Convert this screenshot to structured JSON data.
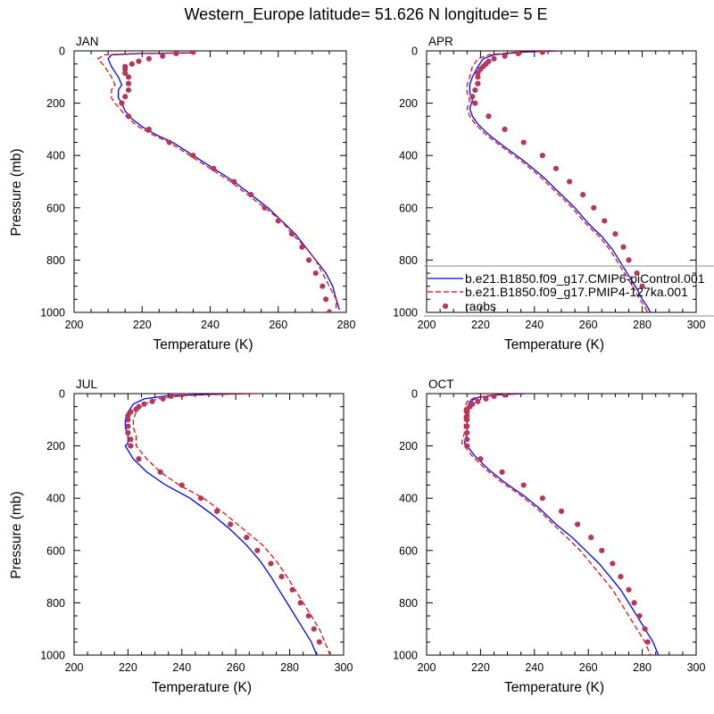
{
  "title": "Western_Europe  latitude= 51.626 N longitude= 5 E",
  "colors": {
    "model_a": "#0000ff",
    "model_b": "#e00000",
    "obs": "#b5385a"
  },
  "legend": {
    "entries": [
      {
        "label": "b.e21.B1850.f09_g17.CMIP6-piControl.001",
        "style": "solid",
        "color": "#0000ff"
      },
      {
        "label": "b.e21.B1850.f09_g17.PMIP4-127ka.001",
        "style": "dashed",
        "color": "#e00000"
      },
      {
        "label": "raobs",
        "style": "marker",
        "color": "#b5385a"
      }
    ]
  },
  "chart_data": [
    {
      "type": "line",
      "panel_label": "JAN",
      "xlabel": "Temperature (K)",
      "ylabel": "Pressure (mb)",
      "xlim": [
        200,
        280
      ],
      "ylim": [
        1000,
        0
      ],
      "xticks": [
        200,
        220,
        240,
        260,
        280
      ],
      "yticks": [
        0,
        200,
        400,
        600,
        800,
        1000
      ],
      "series": [
        {
          "name": "b.e21.B1850.f09_g17.CMIP6-piControl.001",
          "x": [
            235,
            220,
            211,
            210,
            211,
            213,
            214,
            213,
            213,
            214,
            215,
            217,
            220,
            224,
            229,
            235,
            241,
            247,
            252,
            257,
            261,
            265,
            268,
            271,
            274,
            276,
            277,
            278
          ],
          "y": [
            8,
            10,
            15,
            30,
            60,
            100,
            130,
            150,
            180,
            200,
            230,
            260,
            290,
            320,
            350,
            400,
            450,
            500,
            550,
            600,
            650,
            700,
            750,
            800,
            850,
            900,
            950,
            990
          ]
        },
        {
          "name": "b.e21.B1850.f09_g17.PMIP4-127ka.001",
          "x": [
            234,
            218,
            209,
            207,
            209,
            211,
            212,
            211,
            211,
            212,
            214,
            216,
            219,
            223,
            228,
            234,
            240,
            246,
            251,
            256,
            261,
            264,
            268,
            271,
            273,
            275,
            277,
            277
          ],
          "y": [
            8,
            10,
            15,
            30,
            60,
            100,
            130,
            150,
            180,
            200,
            230,
            260,
            290,
            320,
            350,
            400,
            450,
            500,
            550,
            600,
            650,
            700,
            750,
            800,
            850,
            900,
            950,
            990
          ]
        },
        {
          "name": "raobs",
          "x": [
            235,
            230,
            226,
            222,
            219,
            217,
            215,
            215,
            215,
            216,
            216,
            216,
            215,
            214,
            216,
            222,
            228,
            235,
            241,
            247,
            252,
            256,
            260,
            264,
            267,
            269,
            271,
            273,
            274,
            275
          ],
          "y": [
            5,
            10,
            20,
            30,
            40,
            50,
            60,
            70,
            85,
            100,
            125,
            150,
            175,
            200,
            250,
            300,
            350,
            400,
            450,
            500,
            550,
            600,
            650,
            700,
            750,
            800,
            850,
            900,
            950,
            1000
          ]
        }
      ]
    },
    {
      "type": "line",
      "panel_label": "APR",
      "xlabel": "Temperature (K)",
      "ylabel": "",
      "xlim": [
        200,
        300
      ],
      "ylim": [
        1000,
        0
      ],
      "xticks": [
        200,
        220,
        240,
        260,
        280,
        300
      ],
      "yticks": [
        0,
        200,
        400,
        600,
        800,
        1000
      ],
      "series": [
        {
          "name": "b.e21.B1850.f09_g17.CMIP6-piControl.001",
          "x": [
            249,
            235,
            225,
            221,
            219,
            217,
            216,
            216,
            217,
            216,
            217,
            219,
            223,
            228,
            236,
            243,
            249,
            255,
            260,
            265,
            269,
            272,
            275,
            278,
            280,
            282,
            283
          ],
          "y": [
            0,
            5,
            15,
            30,
            60,
            100,
            130,
            160,
            190,
            220,
            250,
            280,
            320,
            360,
            420,
            480,
            540,
            600,
            660,
            710,
            760,
            810,
            860,
            910,
            950,
            980,
            1000
          ]
        },
        {
          "name": "b.e21.B1850.f09_g17.PMIP4-127ka.001",
          "x": [
            248,
            233,
            223,
            219,
            217,
            216,
            215,
            215,
            216,
            215,
            216,
            218,
            222,
            227,
            235,
            242,
            248,
            254,
            259,
            264,
            268,
            271,
            274,
            277,
            279,
            281,
            282
          ],
          "y": [
            0,
            5,
            15,
            30,
            60,
            100,
            130,
            160,
            190,
            220,
            250,
            280,
            320,
            360,
            420,
            480,
            540,
            600,
            660,
            710,
            760,
            810,
            860,
            910,
            950,
            980,
            1000
          ]
        },
        {
          "name": "raobs",
          "x": [
            243,
            234,
            229,
            225,
            223,
            222,
            221,
            220,
            219,
            219,
            219,
            218,
            217,
            218,
            223,
            229,
            236,
            243,
            248,
            253,
            258,
            262,
            266,
            270,
            273,
            275,
            278,
            280
          ],
          "y": [
            5,
            10,
            20,
            30,
            40,
            50,
            60,
            70,
            85,
            100,
            125,
            150,
            175,
            200,
            250,
            300,
            350,
            400,
            450,
            500,
            550,
            600,
            650,
            700,
            750,
            800,
            850,
            900
          ]
        }
      ]
    },
    {
      "type": "line",
      "panel_label": "JUL",
      "xlabel": "Temperature (K)",
      "ylabel": "Pressure (mb)",
      "xlim": [
        200,
        300
      ],
      "ylim": [
        1000,
        0
      ],
      "xticks": [
        200,
        220,
        240,
        260,
        280,
        300
      ],
      "yticks": [
        0,
        200,
        400,
        600,
        800,
        1000
      ],
      "series": [
        {
          "name": "b.e21.B1850.f09_g17.CMIP6-piControl.001",
          "x": [
            265,
            250,
            235,
            226,
            222,
            220,
            219,
            219,
            220,
            220,
            219,
            222,
            227,
            234,
            243,
            251,
            258,
            264,
            269,
            273,
            276,
            279,
            282,
            285,
            288,
            290
          ],
          "y": [
            0,
            3,
            8,
            20,
            40,
            70,
            100,
            130,
            160,
            190,
            200,
            250,
            300,
            350,
            400,
            460,
            520,
            580,
            640,
            700,
            750,
            800,
            850,
            900,
            950,
            1000
          ]
        },
        {
          "name": "b.e21.B1850.f09_g17.PMIP4-127ka.001",
          "x": [
            269,
            254,
            240,
            231,
            226,
            223,
            222,
            222,
            223,
            223,
            223,
            227,
            232,
            239,
            248,
            256,
            263,
            270,
            275,
            279,
            282,
            285,
            288,
            291,
            293,
            295
          ],
          "y": [
            0,
            3,
            8,
            20,
            40,
            70,
            100,
            130,
            160,
            190,
            200,
            250,
            300,
            350,
            400,
            460,
            520,
            580,
            640,
            700,
            750,
            800,
            850,
            900,
            950,
            1000
          ]
        },
        {
          "name": "raobs",
          "x": [
            240,
            236,
            233,
            229,
            226,
            224,
            223,
            221,
            220,
            220,
            220,
            220,
            221,
            221,
            224,
            232,
            240,
            247,
            253,
            258,
            264,
            268,
            273,
            277,
            281,
            284,
            287,
            289,
            291
          ],
          "y": [
            5,
            10,
            20,
            30,
            40,
            50,
            60,
            70,
            85,
            100,
            125,
            150,
            175,
            200,
            250,
            300,
            350,
            400,
            450,
            500,
            550,
            600,
            650,
            700,
            750,
            800,
            850,
            900,
            950
          ]
        }
      ]
    },
    {
      "type": "line",
      "panel_label": "OCT",
      "xlabel": "Temperature (K)",
      "ylabel": "",
      "xlim": [
        200,
        300
      ],
      "ylim": [
        1000,
        0
      ],
      "xticks": [
        200,
        220,
        240,
        260,
        280,
        300
      ],
      "yticks": [
        0,
        200,
        400,
        600,
        800,
        1000
      ],
      "series": [
        {
          "name": "b.e21.B1850.f09_g17.CMIP6-piControl.001",
          "x": [
            237,
            226,
            219,
            216,
            215,
            215,
            215,
            214,
            215,
            218,
            223,
            229,
            236,
            242,
            248,
            254,
            259,
            264,
            268,
            272,
            275,
            278,
            281,
            284,
            286
          ],
          "y": [
            0,
            5,
            15,
            30,
            60,
            100,
            150,
            190,
            200,
            240,
            290,
            340,
            390,
            440,
            500,
            550,
            600,
            650,
            700,
            750,
            800,
            850,
            900,
            950,
            1000
          ]
        },
        {
          "name": "b.e21.B1850.f09_g17.PMIP4-127ka.001",
          "x": [
            236,
            225,
            218,
            215,
            214,
            214,
            214,
            213,
            214,
            217,
            222,
            228,
            235,
            241,
            247,
            252,
            257,
            261,
            265,
            269,
            272,
            275,
            278,
            281,
            283
          ],
          "y": [
            0,
            5,
            15,
            30,
            60,
            100,
            150,
            190,
            200,
            240,
            290,
            340,
            390,
            440,
            500,
            550,
            600,
            650,
            700,
            750,
            800,
            850,
            900,
            950,
            1000
          ]
        },
        {
          "name": "raobs",
          "x": [
            229,
            225,
            222,
            219,
            217,
            216,
            215,
            215,
            215,
            215,
            215,
            215,
            215,
            215,
            220,
            228,
            236,
            243,
            250,
            256,
            261,
            265,
            269,
            272,
            275,
            277,
            279,
            281,
            282
          ],
          "y": [
            5,
            10,
            20,
            30,
            40,
            50,
            60,
            70,
            85,
            100,
            125,
            150,
            175,
            200,
            250,
            300,
            350,
            400,
            450,
            500,
            550,
            600,
            650,
            700,
            750,
            800,
            850,
            900,
            950
          ]
        }
      ]
    }
  ]
}
